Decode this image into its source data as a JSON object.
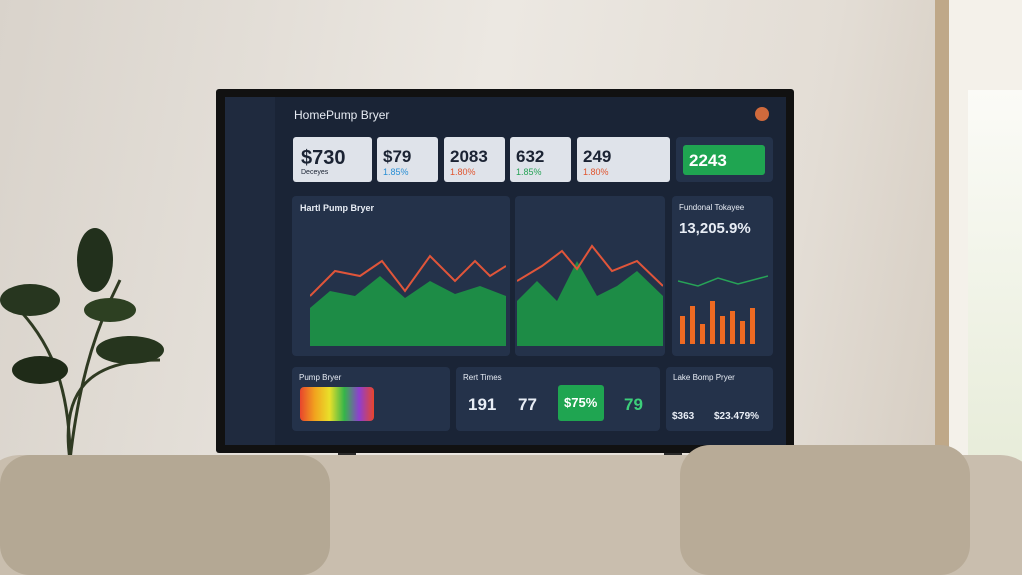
{
  "header": {
    "title": "HomePump Bryer"
  },
  "stats": [
    {
      "value": "$730",
      "label": "Deceyes"
    },
    {
      "value": "$79",
      "change": "1.85%"
    },
    {
      "value": "2083",
      "change": "1.80%"
    },
    {
      "value": "632",
      "change": "1.85%"
    },
    {
      "value": "249",
      "change": "1.80%"
    },
    {
      "value": "2243"
    }
  ],
  "main_chart": {
    "title": "Hartl Pump Bryer"
  },
  "side_panel": {
    "title": "Fundonal Tokayee",
    "value": "13,205.9%"
  },
  "bottom": [
    {
      "title": "Pump Bryer"
    },
    {
      "title": "Rert Times",
      "values": [
        "191",
        "77",
        "$75%",
        "79"
      ]
    },
    {
      "title": "Lake Bomp Pryer",
      "values": [
        "$363",
        "$23.479%"
      ]
    }
  ]
}
